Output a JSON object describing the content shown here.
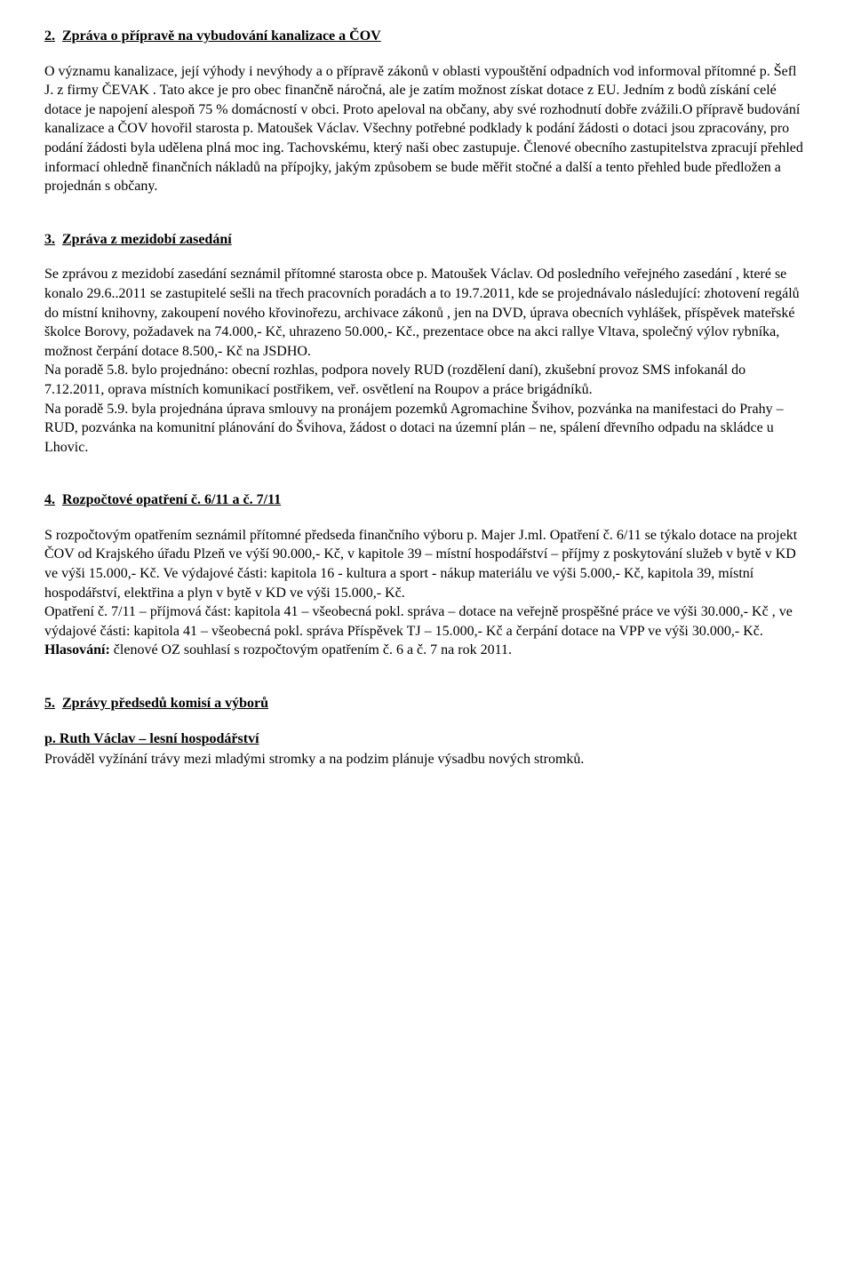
{
  "sections": {
    "s2": {
      "num": "2.",
      "title": "Zpráva o přípravě na vybudování kanalizace a ČOV",
      "para": "   O významu  kanalizace, její výhody i nevýhody a o přípravě zákonů v oblasti vypouštění odpadních vod informoval přítomné p. Šefl  J.  z firmy ČEVAK .  Tato akce je pro obec finančně náročná, ale je zatím možnost získat dotace z EU. Jedním  z bodů získání celé dotace je napojení alespoň 75 % domácností v obci. Proto apeloval na občany, aby své rozhodnutí dobře zvážili.O přípravě budování kanalizace a ČOV hovořil starosta p. Matoušek Václav. Všechny potřebné podklady k podání žádosti o dotaci jsou zpracovány, pro podání žádosti byla udělena plná moc ing. Tachovskému, který naši obec zastupuje. Členové obecního zastupitelstva zpracují přehled informací ohledně finančních nákladů na přípojky, jakým způsobem se bude měřit stočné a další a tento přehled bude předložen  a projednán s občany."
    },
    "s3": {
      "num": "3.",
      "title": "Zpráva z mezidobí zasedání",
      "p1": "   Se zprávou z mezidobí zasedání seznámil přítomné starosta obce p. Matoušek Václav. Od posledního veřejného zasedání , které se konalo 29.6..2011 se zastupitelé sešli na třech pracovních  poradách  a to 19.7.2011, kde se projednávalo následující:  zhotovení regálů do místní knihovny, zakoupení nového křovinořezu, archivace zákonů , jen na DVD, úprava obecních vyhlášek, příspěvek mateřské školce Borovy, požadavek na 74.000,- Kč, uhrazeno 50.000,- Kč., prezentace obce na akci rallye Vltava, společný výlov rybníka, možnost čerpání dotace 8.500,- Kč na JSDHO.",
      "p2": "Na poradě 5.8. bylo projednáno: obecní rozhlas, podpora novely RUD (rozdělení daní), zkušební provoz SMS infokanál do 7.12.2011, oprava místních komunikací postřikem, veř. osvětlení na Roupov a práce brigádníků.",
      "p3": "Na poradě 5.9.  byla projednána úprava smlouvy na pronájem pozemků Agromachine Švihov, pozvánka na manifestaci do Prahy – RUD, pozvánka na komunitní plánování do Švihova, žádost o dotaci na územní plán – ne, spálení dřevního odpadu na skládce u Lhovic."
    },
    "s4": {
      "num": "4.",
      "title": "Rozpočtové opatření č. 6/11 a č. 7/11",
      "p1": "   S rozpočtovým opatřením seznámil přítomné předseda finančního výboru p. Majer J.ml. Opatření č. 6/11 se týkalo dotace na projekt ČOV od Krajského úřadu Plzeň ve výší 90.000,- Kč, v kapitole 39 – místní hospodářství – příjmy z poskytování služeb v bytě v KD ve výši 15.000,- Kč. Ve výdajové části: kapitola 16  - kultura a sport  - nákup materiálu ve výši 5.000,- Kč, kapitola 39, místní hospodářství, elektřina a plyn v bytě v KD ve výši 15.000,- Kč.",
      "p2": "Opatření č. 7/11 – příjmová část: kapitola 41 – všeobecná pokl. správa – dotace na veřejně prospěšné práce ve výši 30.000,- Kč , ve výdajové části: kapitola 41 – všeobecná pokl. správa Příspěvek  TJ – 15.000,- Kč a čerpání dotace na VPP ve výši 30.000,- Kč.",
      "vote_label": "Hlasování:",
      "vote_text": " členové OZ souhlasí s rozpočtovým opatřením č. 6 a č. 7 na rok 2011."
    },
    "s5": {
      "num": "5.",
      "title": "Zprávy předsedů komisí a výborů",
      "sub_heading": "p. Ruth Václav – lesní hospodářství",
      "p1": "Prováděl vyžínání trávy mezi mladými stromky a na podzim plánuje výsadbu nových stromků."
    }
  }
}
